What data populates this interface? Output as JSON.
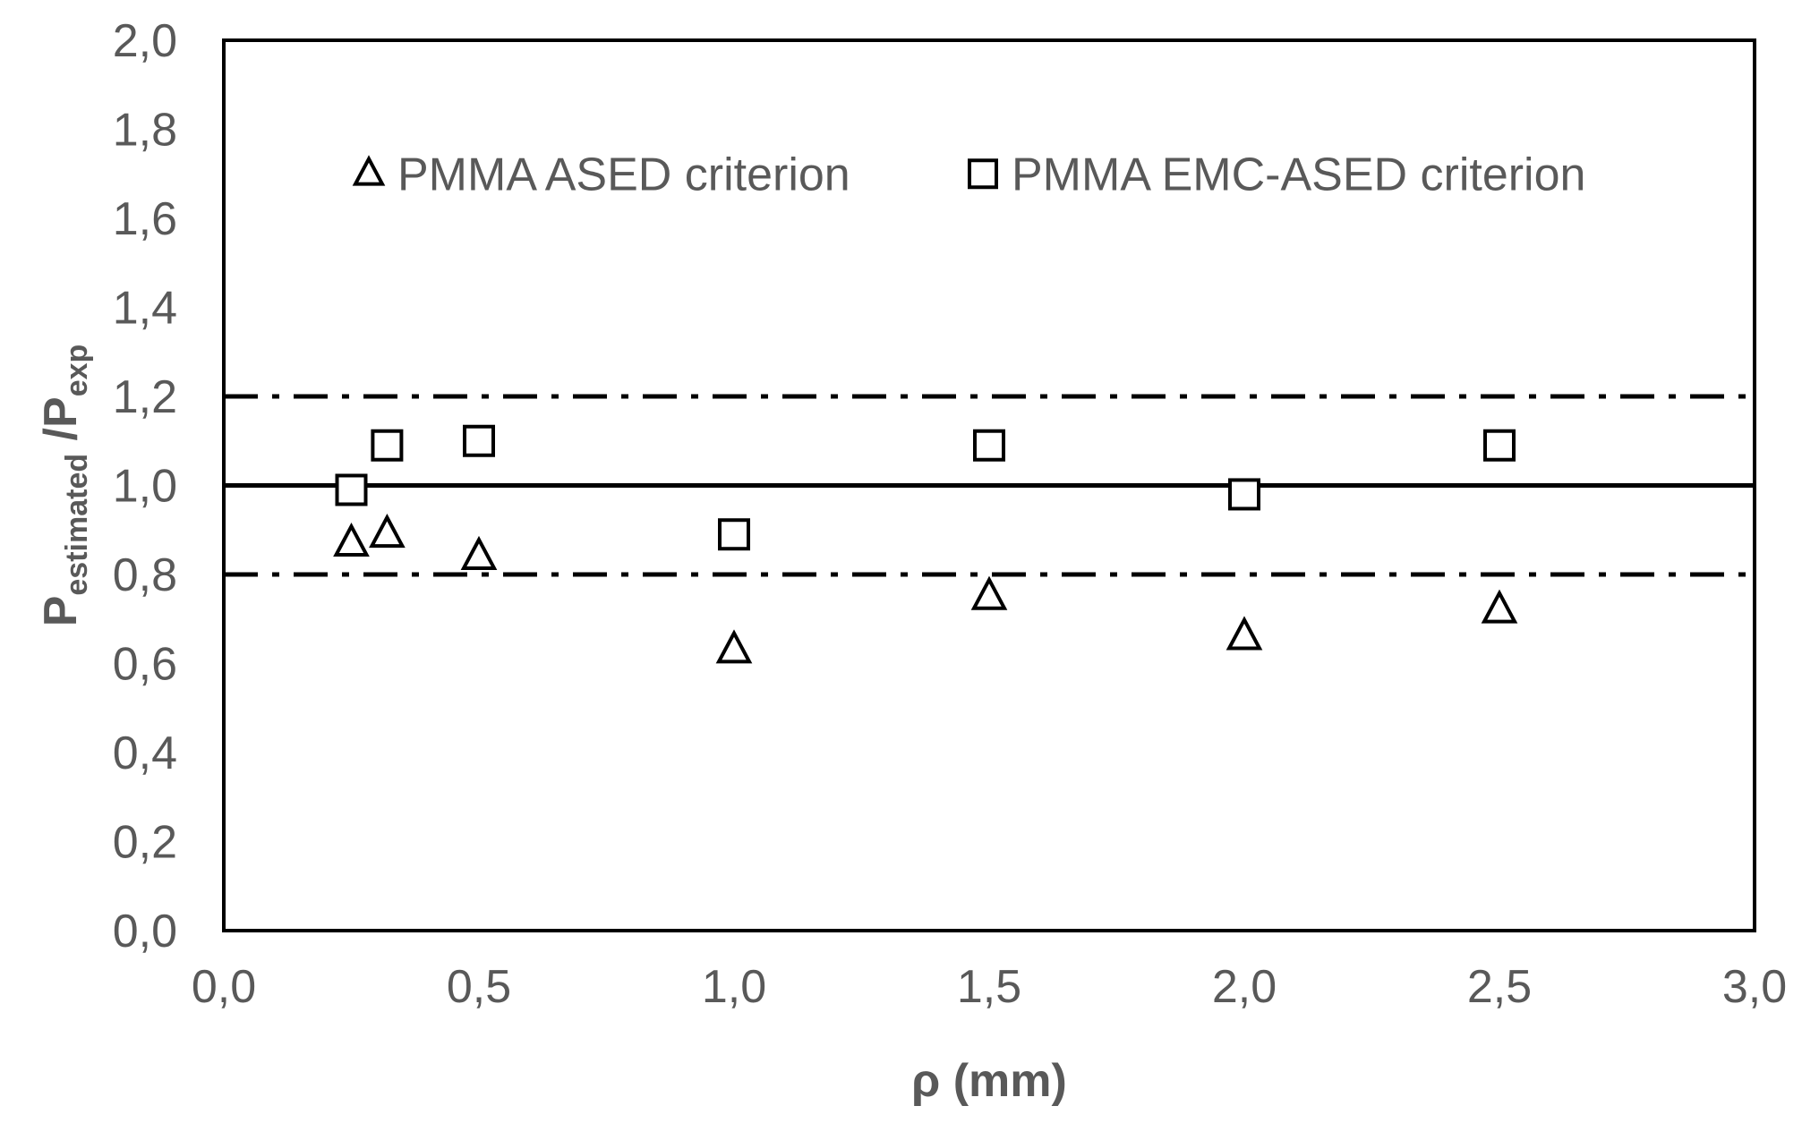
{
  "chart_data": {
    "type": "scatter",
    "title": "",
    "xlabel": "ρ (mm)",
    "ylabel": {
      "main1": "P",
      "sub1": "estimated",
      "slash": " /",
      "main2": "P",
      "sub2": "exp"
    },
    "xlim": [
      0,
      3
    ],
    "ylim": [
      0,
      2
    ],
    "x_ticks": [
      "0,0",
      "0,5",
      "1,0",
      "1,5",
      "2,0",
      "2,5",
      "3,0"
    ],
    "y_ticks": [
      "0,0",
      "0,2",
      "0,4",
      "0,6",
      "0,8",
      "1,0",
      "1,2",
      "1,4",
      "1,6",
      "1,8",
      "2,0"
    ],
    "x_tick_values": [
      0,
      0.5,
      1.0,
      1.5,
      2.0,
      2.5,
      3.0
    ],
    "y_tick_values": [
      0,
      0.2,
      0.4,
      0.6,
      0.8,
      1.0,
      1.2,
      1.4,
      1.6,
      1.8,
      2.0
    ],
    "grid": false,
    "legend_position": "top",
    "reference_lines": [
      {
        "y": 1.0,
        "style": "solid",
        "color": "#000000"
      },
      {
        "y": 1.2,
        "style": "dash-dot",
        "color": "#000000"
      },
      {
        "y": 0.8,
        "style": "dash-dot",
        "color": "#000000"
      }
    ],
    "series": [
      {
        "name": "PMMA ASED criterion",
        "marker": "triangle",
        "color": "#000000",
        "x": [
          0.25,
          0.32,
          0.5,
          1.0,
          1.5,
          2.0,
          2.5
        ],
        "y": [
          0.87,
          0.89,
          0.84,
          0.63,
          0.75,
          0.66,
          0.72
        ]
      },
      {
        "name": "PMMA EMC-ASED criterion",
        "marker": "square",
        "color": "#000000",
        "x": [
          0.25,
          0.32,
          0.5,
          1.0,
          1.5,
          2.0,
          2.5
        ],
        "y": [
          0.99,
          1.09,
          1.1,
          0.89,
          1.09,
          0.98,
          1.09
        ]
      }
    ]
  }
}
